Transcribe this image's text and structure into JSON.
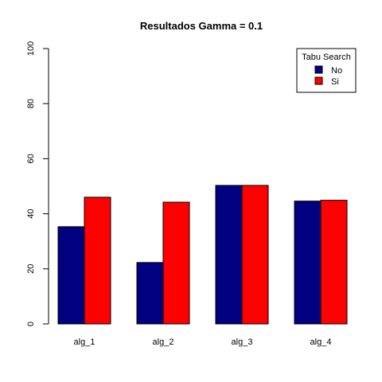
{
  "chart_data": {
    "type": "bar",
    "title": "Resultados Gamma = 0.1",
    "xlabel": "",
    "ylabel": "",
    "categories": [
      "alg_1",
      "alg_2",
      "alg_3",
      "alg_4"
    ],
    "series": [
      {
        "name": "No",
        "color": "#000080",
        "values": [
          35.3,
          22.3,
          50.3,
          44.6
        ]
      },
      {
        "name": "Si",
        "color": "#ff0000",
        "values": [
          46.0,
          44.2,
          50.3,
          44.9
        ]
      }
    ],
    "ylim": [
      0,
      100
    ],
    "yticks": [
      "0",
      "20",
      "40",
      "60",
      "80",
      "100"
    ],
    "grid": false,
    "legend": {
      "title": "Tabu Search",
      "placement": "top-right"
    }
  }
}
